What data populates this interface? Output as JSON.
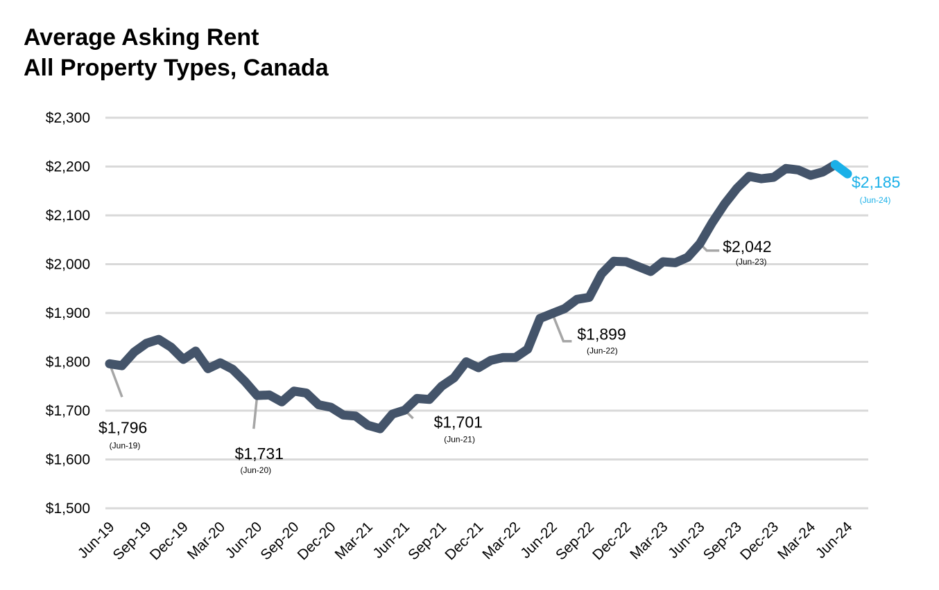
{
  "title_line1": "Average Asking Rent",
  "title_line2": "All Property Types, Canada",
  "colors": {
    "line": "#44546a",
    "highlight": "#1ab0e8",
    "grid": "#d9d9d9",
    "leader": "#a6a6a6"
  },
  "chart_data": {
    "type": "line",
    "title": "Average Asking Rent\nAll Property Types, Canada",
    "xlabel": "",
    "ylabel": "",
    "ylim": [
      1500,
      2300
    ],
    "yticks": [
      1500,
      1600,
      1700,
      1800,
      1900,
      2000,
      2100,
      2200,
      2300
    ],
    "ytick_labels": [
      "$1,500",
      "$1,600",
      "$1,700",
      "$1,800",
      "$1,900",
      "$2,000",
      "$2,100",
      "$2,200",
      "$2,300"
    ],
    "xtick_labels": [
      "Jun-19",
      "Sep-19",
      "Dec-19",
      "Mar-20",
      "Jun-20",
      "Sep-20",
      "Dec-20",
      "Mar-21",
      "Jun-21",
      "Sep-21",
      "Dec-21",
      "Mar-22",
      "Jun-22",
      "Sep-22",
      "Dec-22",
      "Mar-23",
      "Jun-23",
      "Sep-23",
      "Dec-23",
      "Mar-24",
      "Jun-24"
    ],
    "grid": true,
    "x": [
      "Jun-19",
      "Jul-19",
      "Aug-19",
      "Sep-19",
      "Oct-19",
      "Nov-19",
      "Dec-19",
      "Jan-20",
      "Feb-20",
      "Mar-20",
      "Apr-20",
      "May-20",
      "Jun-20",
      "Jul-20",
      "Aug-20",
      "Sep-20",
      "Oct-20",
      "Nov-20",
      "Dec-20",
      "Jan-21",
      "Feb-21",
      "Mar-21",
      "Apr-21",
      "May-21",
      "Jun-21",
      "Jul-21",
      "Aug-21",
      "Sep-21",
      "Oct-21",
      "Nov-21",
      "Dec-21",
      "Jan-22",
      "Feb-22",
      "Mar-22",
      "Apr-22",
      "May-22",
      "Jun-22",
      "Jul-22",
      "Aug-22",
      "Sep-22",
      "Oct-22",
      "Nov-22",
      "Dec-22",
      "Jan-23",
      "Feb-23",
      "Mar-23",
      "Apr-23",
      "May-23",
      "Jun-23",
      "Jul-23",
      "Aug-23",
      "Sep-23",
      "Oct-23",
      "Nov-23",
      "Dec-23",
      "Jan-24",
      "Feb-24",
      "Mar-24",
      "Apr-24",
      "May-24",
      "Jun-24"
    ],
    "series": [
      {
        "values": [
          1796,
          1792,
          1820,
          1838,
          1846,
          1830,
          1805,
          1822,
          1786,
          1798,
          1785,
          1760,
          1731,
          1732,
          1718,
          1740,
          1736,
          1712,
          1707,
          1691,
          1689,
          1670,
          1663,
          1693,
          1701,
          1725,
          1723,
          1750,
          1767,
          1800,
          1788,
          1803,
          1809,
          1809,
          1826,
          1889,
          1899,
          1909,
          1928,
          1932,
          1980,
          2006,
          2005,
          1995,
          1985,
          2005,
          2003,
          2014,
          2042,
          2085,
          2123,
          2155,
          2180,
          2175,
          2178,
          2196,
          2193,
          2182,
          2189,
          2204,
          2185
        ]
      }
    ],
    "annotations": [
      {
        "index": 0,
        "value": "$1,796",
        "date": "(Jun-19)"
      },
      {
        "index": 12,
        "value": "$1,731",
        "date": "(Jun-20)"
      },
      {
        "index": 24,
        "value": "$1,701",
        "date": "(Jun-21)"
      },
      {
        "index": 36,
        "value": "$1,899",
        "date": "(Jun-22)"
      },
      {
        "index": 48,
        "value": "$2,042",
        "date": "(Jun-23)"
      },
      {
        "index": 60,
        "value": "$2,185",
        "date": "(Jun-24)",
        "highlight": true
      }
    ]
  }
}
